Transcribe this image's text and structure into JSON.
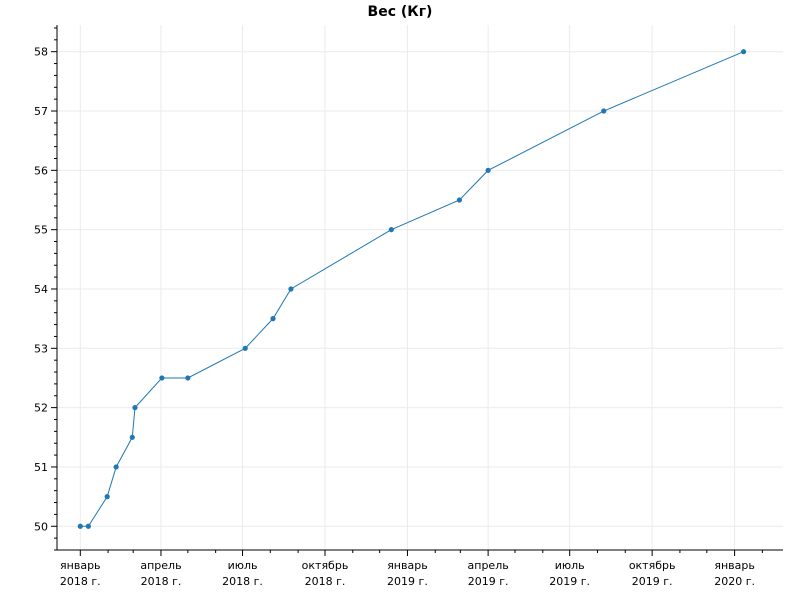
{
  "chart_data": {
    "type": "line",
    "title": "Вес (Кг)",
    "xlabel": "",
    "ylabel": "",
    "ylim": [
      49.6,
      58.45
    ],
    "xlim": [
      "2017-12-06",
      "2020-02-24"
    ],
    "y_ticks": [
      "50",
      "51",
      "52",
      "53",
      "54",
      "55",
      "56",
      "57",
      "58"
    ],
    "x_ticks": [
      {
        "date": "2018-01-01",
        "line1": "январь",
        "line2": "2018 г."
      },
      {
        "date": "2018-04-01",
        "line1": "апрель",
        "line2": "2018 г."
      },
      {
        "date": "2018-07-01",
        "line1": "июль",
        "line2": "2018 г."
      },
      {
        "date": "2018-10-01",
        "line1": "октябрь",
        "line2": "2018 г."
      },
      {
        "date": "2019-01-01",
        "line1": "январь",
        "line2": "2019 г."
      },
      {
        "date": "2019-04-01",
        "line1": "апрель",
        "line2": "2019 г."
      },
      {
        "date": "2019-07-01",
        "line1": "июль",
        "line2": "2019 г."
      },
      {
        "date": "2019-10-01",
        "line1": "октябрь",
        "line2": "2019 г."
      },
      {
        "date": "2020-01-01",
        "line1": "январь",
        "line2": "2020 г."
      }
    ],
    "grid": true,
    "line_color": "#1f77b4",
    "series": [
      {
        "points": [
          {
            "x": "2018-01-01",
            "y": 50
          },
          {
            "x": "2018-01-10",
            "y": 50
          },
          {
            "x": "2018-01-31",
            "y": 50.5
          },
          {
            "x": "2018-02-10",
            "y": 51
          },
          {
            "x": "2018-02-28",
            "y": 51.5
          },
          {
            "x": "2018-03-03",
            "y": 52
          },
          {
            "x": "2018-04-02",
            "y": 52.5
          },
          {
            "x": "2018-05-01",
            "y": 52.5
          },
          {
            "x": "2018-07-04",
            "y": 53
          },
          {
            "x": "2018-08-04",
            "y": 53.5
          },
          {
            "x": "2018-08-24",
            "y": 54
          },
          {
            "x": "2018-12-14",
            "y": 55
          },
          {
            "x": "2019-02-28",
            "y": 55.5
          },
          {
            "x": "2019-04-01",
            "y": 56
          },
          {
            "x": "2019-08-08",
            "y": 57
          },
          {
            "x": "2020-01-11",
            "y": 58
          }
        ]
      }
    ]
  }
}
